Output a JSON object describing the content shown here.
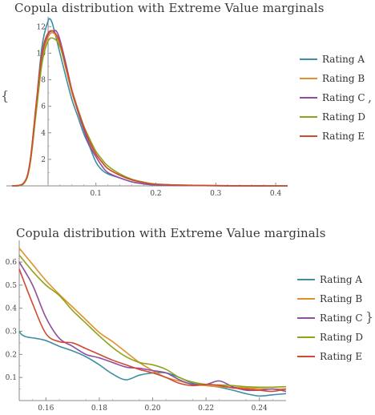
{
  "chart_data": [
    {
      "type": "line",
      "title": "Copula distribution with Extreme Value marginals",
      "xlabel": "",
      "ylabel": "",
      "xlim": [
        -0.04,
        0.42
      ],
      "ylim": [
        0,
        12.5
      ],
      "xticks": [
        0.1,
        0.2,
        0.3,
        0.4
      ],
      "xtick_labels": [
        "0.1",
        "0.2",
        "0.3",
        "0.4"
      ],
      "yticks": [
        2,
        4,
        6,
        8,
        10,
        12
      ],
      "ytick_labels": [
        "2",
        "4",
        "6",
        "8",
        "10",
        "12"
      ],
      "grid": false,
      "legend_position": "right",
      "series": [
        {
          "name": "Rating A",
          "color": "#3d8fa3",
          "x": [
            -0.04,
            -0.02,
            -0.01,
            0.0,
            0.01,
            0.02,
            0.025,
            0.03,
            0.04,
            0.05,
            0.06,
            0.07,
            0.08,
            0.09,
            0.1,
            0.11,
            0.12,
            0.14,
            0.16,
            0.18,
            0.2,
            0.25,
            0.3,
            0.35,
            0.4,
            0.42
          ],
          "values": [
            0,
            0.2,
            1.8,
            6,
            10.5,
            12.4,
            12.5,
            11.8,
            10,
            8.2,
            6.5,
            5.2,
            3.9,
            2.9,
            1.8,
            1.2,
            0.9,
            0.6,
            0.3,
            0.15,
            0.08,
            0.03,
            0.01,
            0,
            0,
            0
          ]
        },
        {
          "name": "Rating B",
          "color": "#e0912d",
          "x": [
            -0.04,
            -0.02,
            -0.01,
            0.0,
            0.01,
            0.02,
            0.03,
            0.04,
            0.05,
            0.06,
            0.07,
            0.08,
            0.09,
            0.1,
            0.11,
            0.12,
            0.14,
            0.16,
            0.18,
            0.2,
            0.25,
            0.3,
            0.35,
            0.4,
            0.42
          ],
          "values": [
            0,
            0.2,
            1.6,
            5.5,
            9.5,
            11.2,
            11.5,
            10.6,
            8.8,
            7,
            5.6,
            4.3,
            3.2,
            2.4,
            1.8,
            1.3,
            0.8,
            0.45,
            0.25,
            0.12,
            0.05,
            0.02,
            0.01,
            0,
            0
          ]
        },
        {
          "name": "Rating C",
          "color": "#8f4f9e",
          "x": [
            -0.04,
            -0.02,
            -0.01,
            0.0,
            0.01,
            0.02,
            0.03,
            0.035,
            0.04,
            0.05,
            0.06,
            0.07,
            0.08,
            0.09,
            0.1,
            0.11,
            0.12,
            0.14,
            0.16,
            0.18,
            0.2,
            0.25,
            0.3,
            0.35,
            0.4,
            0.42
          ],
          "values": [
            0,
            0.2,
            1.7,
            5.8,
            9.8,
            11.4,
            11.7,
            11.6,
            11,
            9.2,
            7.2,
            5.6,
            4.2,
            3,
            2.2,
            1.5,
            1,
            0.6,
            0.3,
            0.15,
            0.07,
            0.03,
            0.01,
            0,
            0,
            0
          ]
        },
        {
          "name": "Rating D",
          "color": "#8fa21b",
          "x": [
            -0.04,
            -0.02,
            -0.01,
            0.0,
            0.01,
            0.02,
            0.03,
            0.04,
            0.05,
            0.06,
            0.07,
            0.08,
            0.09,
            0.1,
            0.11,
            0.12,
            0.14,
            0.16,
            0.18,
            0.2,
            0.25,
            0.3,
            0.35,
            0.4,
            0.42
          ],
          "values": [
            0,
            0.2,
            1.6,
            5.4,
            9.2,
            10.9,
            11.1,
            10.5,
            8.9,
            7.2,
            5.8,
            4.5,
            3.5,
            2.6,
            2,
            1.5,
            0.9,
            0.5,
            0.28,
            0.14,
            0.05,
            0.02,
            0.01,
            0,
            0
          ]
        },
        {
          "name": "Rating E",
          "color": "#d04a32",
          "x": [
            -0.04,
            -0.02,
            -0.01,
            0.0,
            0.01,
            0.02,
            0.03,
            0.04,
            0.05,
            0.06,
            0.07,
            0.08,
            0.09,
            0.1,
            0.11,
            0.12,
            0.14,
            0.16,
            0.18,
            0.2,
            0.25,
            0.3,
            0.35,
            0.4,
            0.42
          ],
          "values": [
            0,
            0.25,
            1.8,
            6,
            10,
            11.5,
            11.6,
            10.8,
            9,
            7.2,
            5.7,
            4.4,
            3.3,
            2.4,
            1.8,
            1.3,
            0.8,
            0.45,
            0.25,
            0.12,
            0.05,
            0.02,
            0.01,
            0,
            0
          ]
        }
      ]
    },
    {
      "type": "line",
      "title": "Copula distribution with Extreme Value marginals",
      "xlabel": "",
      "ylabel": "",
      "xlim": [
        0.15,
        0.25
      ],
      "ylim": [
        0,
        0.68
      ],
      "xticks": [
        0.16,
        0.18,
        0.2,
        0.22,
        0.24
      ],
      "xtick_labels": [
        "0.16",
        "0.18",
        "0.20",
        "0.22",
        "0.24"
      ],
      "yticks": [
        0.1,
        0.2,
        0.3,
        0.4,
        0.5,
        0.6
      ],
      "ytick_labels": [
        "0.1",
        "0.2",
        "0.3",
        "0.4",
        "0.5",
        "0.6"
      ],
      "grid": false,
      "legend_position": "right",
      "series": [
        {
          "name": "Rating A",
          "color": "#3d8fa3",
          "x": [
            0.15,
            0.151,
            0.153,
            0.156,
            0.16,
            0.165,
            0.17,
            0.175,
            0.18,
            0.185,
            0.19,
            0.195,
            0.2,
            0.205,
            0.21,
            0.215,
            0.22,
            0.225,
            0.23,
            0.235,
            0.24,
            0.245,
            0.25
          ],
          "values": [
            0.3,
            0.285,
            0.275,
            0.27,
            0.26,
            0.235,
            0.215,
            0.19,
            0.155,
            0.115,
            0.09,
            0.11,
            0.12,
            0.12,
            0.1,
            0.075,
            0.065,
            0.058,
            0.045,
            0.03,
            0.02,
            0.025,
            0.03
          ]
        },
        {
          "name": "Rating B",
          "color": "#e0912d",
          "x": [
            0.15,
            0.155,
            0.16,
            0.165,
            0.17,
            0.175,
            0.18,
            0.185,
            0.19,
            0.195,
            0.2,
            0.205,
            0.21,
            0.215,
            0.22,
            0.225,
            0.23,
            0.235,
            0.24,
            0.245,
            0.25
          ],
          "values": [
            0.66,
            0.59,
            0.52,
            0.46,
            0.405,
            0.35,
            0.295,
            0.255,
            0.21,
            0.165,
            0.13,
            0.1,
            0.085,
            0.07,
            0.065,
            0.06,
            0.058,
            0.055,
            0.052,
            0.05,
            0.05
          ]
        },
        {
          "name": "Rating C",
          "color": "#8f4f9e",
          "x": [
            0.15,
            0.155,
            0.16,
            0.165,
            0.17,
            0.175,
            0.18,
            0.185,
            0.19,
            0.195,
            0.2,
            0.205,
            0.21,
            0.215,
            0.22,
            0.225,
            0.23,
            0.235,
            0.24,
            0.245,
            0.25
          ],
          "values": [
            0.6,
            0.5,
            0.36,
            0.27,
            0.235,
            0.2,
            0.185,
            0.165,
            0.145,
            0.14,
            0.13,
            0.12,
            0.09,
            0.07,
            0.07,
            0.085,
            0.06,
            0.045,
            0.045,
            0.05,
            0.04
          ]
        },
        {
          "name": "Rating D",
          "color": "#8fa21b",
          "x": [
            0.15,
            0.155,
            0.16,
            0.165,
            0.17,
            0.175,
            0.18,
            0.185,
            0.19,
            0.195,
            0.2,
            0.205,
            0.21,
            0.215,
            0.22,
            0.225,
            0.23,
            0.235,
            0.24,
            0.245,
            0.25
          ],
          "values": [
            0.63,
            0.56,
            0.5,
            0.455,
            0.39,
            0.335,
            0.28,
            0.23,
            0.19,
            0.165,
            0.155,
            0.135,
            0.1,
            0.08,
            0.07,
            0.068,
            0.065,
            0.06,
            0.058,
            0.058,
            0.06
          ]
        },
        {
          "name": "Rating E",
          "color": "#d04a32",
          "x": [
            0.15,
            0.155,
            0.16,
            0.165,
            0.17,
            0.175,
            0.18,
            0.185,
            0.19,
            0.195,
            0.2,
            0.205,
            0.21,
            0.215,
            0.22,
            0.225,
            0.23,
            0.235,
            0.24,
            0.245,
            0.25
          ],
          "values": [
            0.57,
            0.42,
            0.29,
            0.255,
            0.25,
            0.225,
            0.2,
            0.175,
            0.155,
            0.135,
            0.12,
            0.1,
            0.075,
            0.065,
            0.07,
            0.065,
            0.055,
            0.05,
            0.045,
            0.04,
            0.05
          ]
        }
      ]
    }
  ],
  "brackets": {
    "top_left": "{",
    "top_right": ",",
    "bottom_right": "}"
  }
}
